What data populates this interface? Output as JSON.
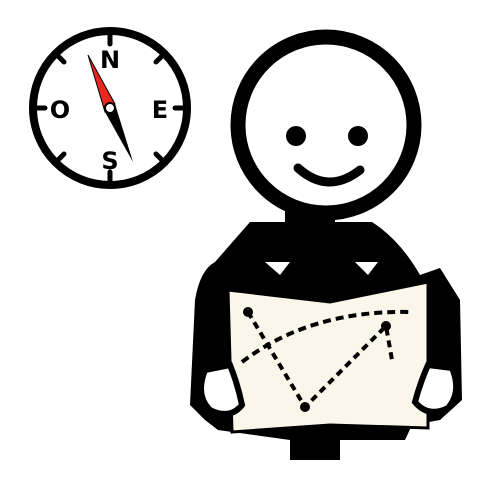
{
  "compass": {
    "north": "N",
    "south": "S",
    "east": "E",
    "west": "O",
    "needle_north_color": "#e8281e",
    "needle_south_color": "#000000"
  },
  "figure": {
    "body_color": "#000000",
    "map_color": "#fbf6ea"
  },
  "icons": [
    "compass-icon",
    "person-reading-map-icon",
    "map-icon"
  ]
}
